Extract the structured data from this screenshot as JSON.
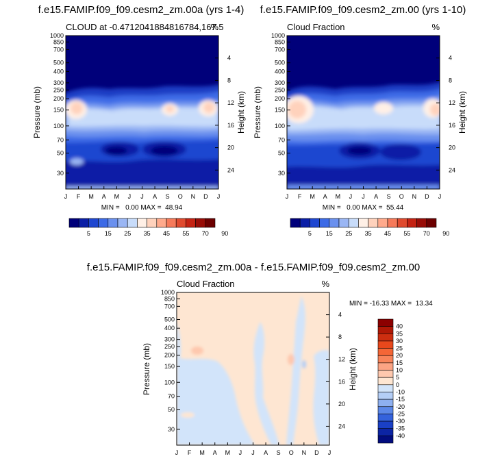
{
  "chart_data": [
    {
      "type": "heatmap",
      "title": "f.e15.FAMIP.f09_f09.cesm2_zm.00a (yrs 1-4)",
      "subtitle_left": "CLOUD at -0.4712041884816784,167.5",
      "subtitle_right": "%",
      "xlabel": "",
      "ylabel": "Pressure (mb)",
      "ylabel_right": "Height (km)",
      "x_categories": [
        "J",
        "F",
        "M",
        "A",
        "M",
        "J",
        "J",
        "A",
        "S",
        "O",
        "N",
        "D",
        "J"
      ],
      "y_ticks": [
        "30",
        "50",
        "70",
        "100",
        "150",
        "200",
        "250",
        "300",
        "400",
        "500",
        "700",
        "850",
        "1000"
      ],
      "y_ticks_right": [
        "24",
        "20",
        "16",
        "12",
        "8",
        "4"
      ],
      "ylim_mb": [
        1000,
        20
      ],
      "y_scale": "log",
      "stats": "MIN =   0.00 MAX =  48.94",
      "min": 0.0,
      "max": 48.94,
      "colorbar_levels": [
        "5",
        "15",
        "25",
        "35",
        "45",
        "55",
        "70",
        "90"
      ],
      "colors": [
        "#00007a",
        "#0a1ea6",
        "#1e46d0",
        "#3c6ae6",
        "#6a90ee",
        "#9ab6f4",
        "#c8dcfa",
        "#fff0e6",
        "#ffd2bc",
        "#ffaa8c",
        "#f67a5a",
        "#e04a2e",
        "#c42212",
        "#980c06",
        "#6c0000"
      ]
    },
    {
      "type": "heatmap",
      "title": "f.e15.FAMIP.f09_f09.cesm2_zm.00 (yrs 1-10)",
      "subtitle_left": "Cloud Fraction",
      "subtitle_right": "%",
      "xlabel": "",
      "ylabel": "Pressure (mb)",
      "ylabel_right": "Height (km)",
      "x_categories": [
        "J",
        "F",
        "M",
        "A",
        "M",
        "J",
        "J",
        "A",
        "S",
        "O",
        "N",
        "D",
        "J"
      ],
      "y_ticks": [
        "30",
        "50",
        "70",
        "100",
        "150",
        "200",
        "250",
        "300",
        "400",
        "500",
        "700",
        "850",
        "1000"
      ],
      "y_ticks_right": [
        "24",
        "20",
        "16",
        "12",
        "8",
        "4"
      ],
      "ylim_mb": [
        1000,
        20
      ],
      "y_scale": "log",
      "stats": "MIN =   0.00 MAX =  55.44",
      "min": 0.0,
      "max": 55.44,
      "colorbar_levels": [
        "5",
        "15",
        "25",
        "35",
        "45",
        "55",
        "70",
        "90"
      ],
      "colors": [
        "#00007a",
        "#0a1ea6",
        "#1e46d0",
        "#3c6ae6",
        "#6a90ee",
        "#9ab6f4",
        "#c8dcfa",
        "#fff0e6",
        "#ffd2bc",
        "#ffaa8c",
        "#f67a5a",
        "#e04a2e",
        "#c42212",
        "#980c06",
        "#6c0000"
      ]
    },
    {
      "type": "heatmap",
      "title": "f.e15.FAMIP.f09_f09.cesm2_zm.00a - f.e15.FAMIP.f09_f09.cesm2_zm.00",
      "subtitle_left": "Cloud Fraction",
      "subtitle_right": "%",
      "xlabel": "",
      "ylabel": "Pressure (mb)",
      "ylabel_right": "Height (km)",
      "x_categories": [
        "J",
        "F",
        "M",
        "A",
        "M",
        "J",
        "J",
        "A",
        "S",
        "O",
        "N",
        "D",
        "J"
      ],
      "y_ticks": [
        "30",
        "50",
        "70",
        "100",
        "150",
        "200",
        "250",
        "300",
        "400",
        "500",
        "700",
        "850",
        "1000"
      ],
      "y_ticks_right": [
        "24",
        "20",
        "16",
        "12",
        "8",
        "4"
      ],
      "ylim_mb": [
        1000,
        20
      ],
      "y_scale": "log",
      "stats": "MIN = -16.33 MAX =  13.34",
      "min": -16.33,
      "max": 13.34,
      "colorbar_levels": [
        "40",
        "35",
        "30",
        "25",
        "20",
        "15",
        "10",
        "5",
        "0",
        "-10",
        "-15",
        "-20",
        "-25",
        "-30",
        "-35",
        "-40"
      ],
      "colors": [
        "#8c0000",
        "#b01806",
        "#cc2e10",
        "#e8481c",
        "#f46636",
        "#f8845a",
        "#fca484",
        "#fec8ae",
        "#fee6d2",
        "#d2e4fa",
        "#b4cef6",
        "#8eb0f0",
        "#5c88e8",
        "#3462dc",
        "#1a40c6",
        "#0c24a4",
        "#020c7e"
      ]
    }
  ]
}
